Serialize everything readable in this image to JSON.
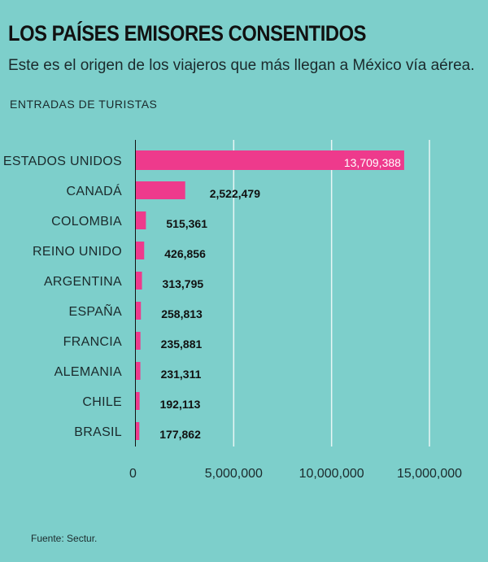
{
  "header": {
    "title": "LOS PAÍSES EMISORES CONSENTIDOS",
    "subtitle": "Este es el origen de los viajeros que más llegan a México vía aérea.",
    "metric_label": "ENTRADAS DE TURISTAS"
  },
  "footer": {
    "source": "Fuente: Sectur."
  },
  "colors": {
    "bar": "#ee3a8c",
    "background": "#7dcfcb",
    "grid": "#e8f6f5"
  },
  "chart_data": {
    "type": "bar",
    "orientation": "horizontal",
    "title": "LOS PAÍSES EMISORES CONSENTIDOS",
    "xlabel": "ENTRADAS DE TURISTAS",
    "ylabel": "",
    "categories": [
      "ESTADOS UNIDOS",
      "CANADÁ",
      "COLOMBIA",
      "REINO UNIDO",
      "ARGENTINA",
      "ESPAÑA",
      "FRANCIA",
      "ALEMANIA",
      "CHILE",
      "BRASIL"
    ],
    "values": [
      13709388,
      2522479,
      515361,
      426856,
      313795,
      258813,
      235881,
      231311,
      192113,
      177862
    ],
    "value_labels": [
      "13,709,388",
      "2,522,479",
      "515,361",
      "426,856",
      "313,795",
      "258,813",
      "235,881",
      "231,311",
      "192,113",
      "177,862"
    ],
    "xlim": [
      0,
      15000000
    ],
    "xticks": [
      0,
      5000000,
      10000000,
      15000000
    ],
    "xtick_labels": [
      "0",
      "5,000,000",
      "10,000,000",
      "15,000,000"
    ],
    "grid": true
  }
}
